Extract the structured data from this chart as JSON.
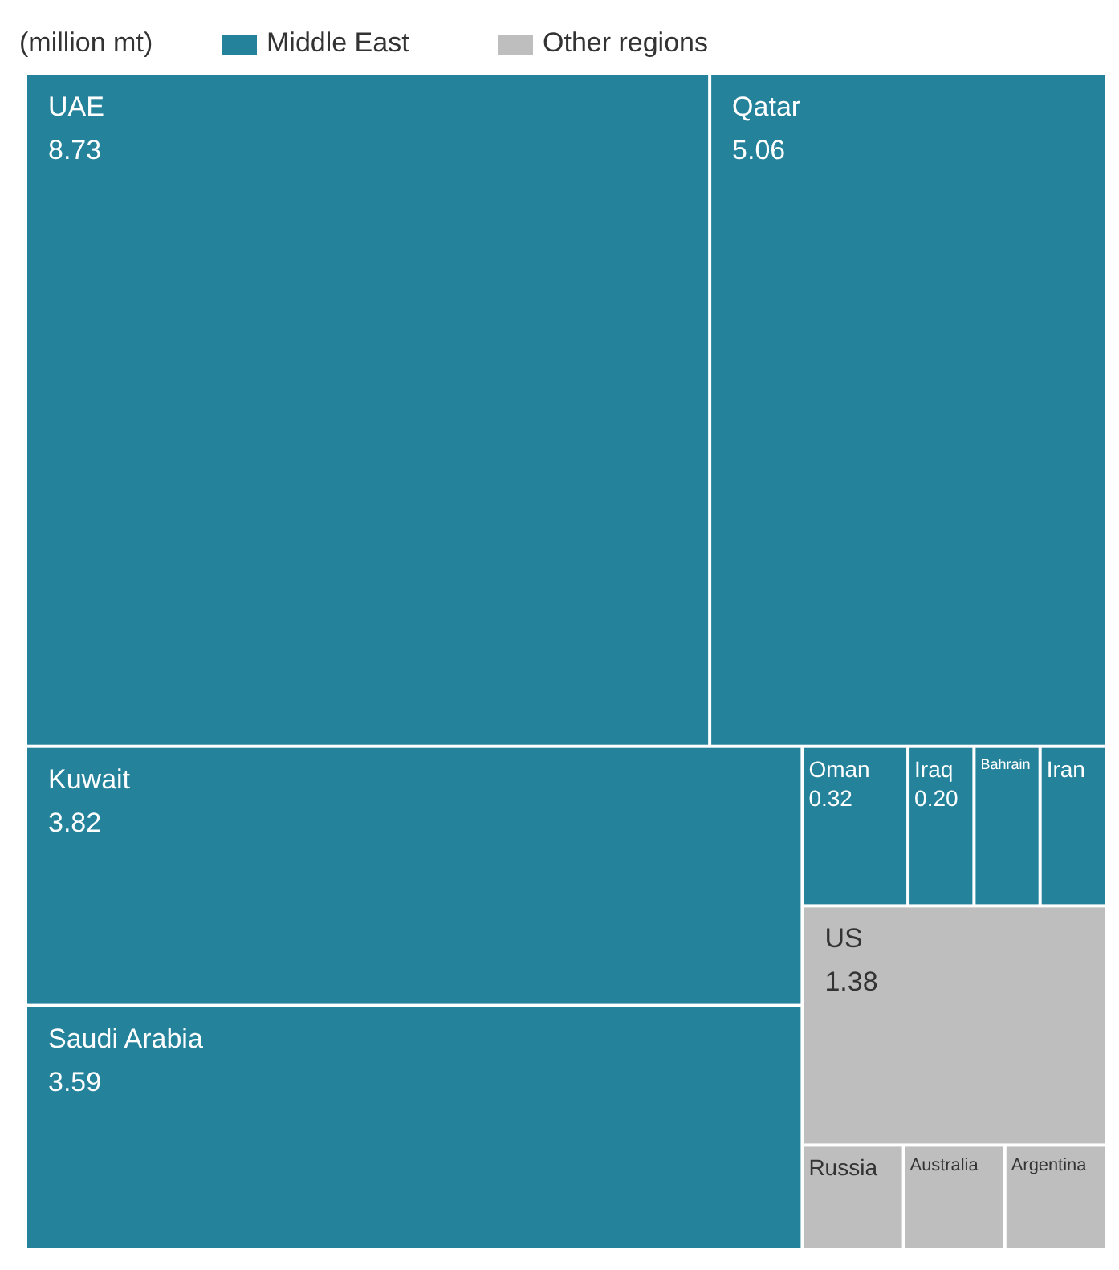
{
  "chart_data": {
    "type": "other",
    "subtitle": "(million mt)",
    "legend": "top left",
    "categories": [
      "UAE",
      "Qatar",
      "Kuwait",
      "Saudi Arabia",
      "Oman",
      "Iraq",
      "Bahrain",
      "Iran",
      "US",
      "Russia",
      "Australia",
      "Argentina"
    ],
    "colors": [
      "#24829b",
      "#24829b",
      "#24829b",
      "#24829b",
      "#24829b",
      "#24829b",
      "#24829b",
      "#24829b",
      "#bebebe",
      "#bebebe",
      "#bebebe",
      "#bebebe"
    ],
    "series": [
      {
        "name": "Middle East",
        "color": "#24829b",
        "values": [
          8.73,
          5.06,
          3.82,
          3.59,
          0.32,
          0.2,
          null,
          null,
          null,
          null,
          null,
          null
        ],
        "value_labels": [
          "8.73",
          "5.06",
          "3.82",
          "3.59",
          "0.32",
          "0.20",
          null,
          null,
          null,
          null,
          null,
          null
        ]
      },
      {
        "name": "Other regions",
        "color": "#bebebe",
        "values": [
          null,
          null,
          null,
          null,
          null,
          null,
          null,
          null,
          1.38,
          null,
          null,
          null
        ],
        "value_labels": [
          null,
          null,
          null,
          null,
          null,
          null,
          null,
          null,
          "1.38",
          null,
          null,
          null
        ]
      }
    ]
  }
}
